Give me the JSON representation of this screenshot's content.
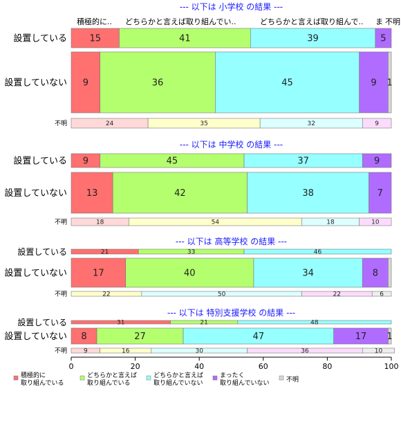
{
  "chart_data": {
    "type": "bar",
    "orientation": "horizontal",
    "stacked": true,
    "xlim": [
      0,
      100
    ],
    "xticks": [
      0,
      20,
      40,
      60,
      80,
      100
    ],
    "categories": [
      "積極的に\n取り組んでいる",
      "どちらかと言えば\n取り組んでいる",
      "どちらかと言えば\n取り組んでいない",
      "まったく\n取り組んでいない",
      "不明"
    ],
    "colors": {
      "full": [
        "#ff7070",
        "#b4ff6e",
        "#96ffff",
        "#b06cff",
        "#d8d8d8"
      ],
      "light": [
        "#ffd9d9",
        "#ffffcc",
        "#ddffff",
        "#fcdcfc",
        "#eeeeee"
      ]
    },
    "legend_position": "bottom",
    "top_header_labels": [
      "積極的に..",
      "どちらかと言えば取り組んでい..",
      "どちらかと言えば取り組んで..",
      "ま",
      "不明"
    ],
    "panels": [
      {
        "title": "--- 以下は 小学校 の結果 ---",
        "rows": [
          {
            "label": "設置している",
            "values": [
              15,
              41,
              39,
              5,
              0
            ],
            "value_labels": [
              "15",
              "41",
              "39",
              "5",
              ""
            ]
          },
          {
            "label": "設置していない",
            "values": [
              9,
              36,
              45,
              9,
              1
            ],
            "value_labels": [
              "9",
              "36",
              "45",
              "9",
              "1"
            ]
          },
          {
            "label": "不明",
            "values": [
              24,
              35,
              32,
              9,
              0
            ],
            "value_labels": [
              "24",
              "35",
              "32",
              "9",
              ""
            ]
          }
        ]
      },
      {
        "title": "--- 以下は 中学校 の結果 ---",
        "rows": [
          {
            "label": "設置している",
            "values": [
              9,
              45,
              37,
              9,
              0
            ],
            "value_labels": [
              "9",
              "45",
              "37",
              "9",
              ""
            ]
          },
          {
            "label": "設置していない",
            "values": [
              13,
              42,
              38,
              7,
              0
            ],
            "value_labels": [
              "13",
              "42",
              "38",
              "7",
              ""
            ]
          },
          {
            "label": "不明",
            "values": [
              18,
              54,
              18,
              10,
              0
            ],
            "value_labels": [
              "18",
              "54",
              "18",
              "10",
              ""
            ]
          }
        ]
      },
      {
        "title": "--- 以下は 高等学校 の結果 ---",
        "rows": [
          {
            "label": "設置している",
            "values": [
              21,
              33,
              46,
              0,
              0
            ],
            "value_labels": [
              "21",
              "33",
              "46",
              "",
              ""
            ]
          },
          {
            "label": "設置していない",
            "values": [
              17,
              40,
              34,
              8,
              1
            ],
            "value_labels": [
              "17",
              "40",
              "34",
              "8",
              ""
            ]
          },
          {
            "label": "不明",
            "values": [
              0,
              22,
              50,
              22,
              6
            ],
            "value_labels": [
              "",
              "22",
              "50",
              "22",
              "6"
            ]
          }
        ]
      },
      {
        "title": "--- 以下は 特別支援学校 の結果 ---",
        "rows": [
          {
            "label": "設置している",
            "values": [
              31,
              21,
              48,
              0,
              0
            ],
            "value_labels": [
              "31",
              "21",
              "48",
              "",
              ""
            ]
          },
          {
            "label": "設置していない",
            "values": [
              8,
              27,
              47,
              17,
              1
            ],
            "value_labels": [
              "8",
              "27",
              "47",
              "17",
              "1"
            ]
          },
          {
            "label": "不明",
            "values": [
              9,
              16,
              30,
              36,
              10
            ],
            "value_labels": [
              "9",
              "16",
              "30",
              "36",
              "10"
            ]
          }
        ]
      }
    ]
  }
}
